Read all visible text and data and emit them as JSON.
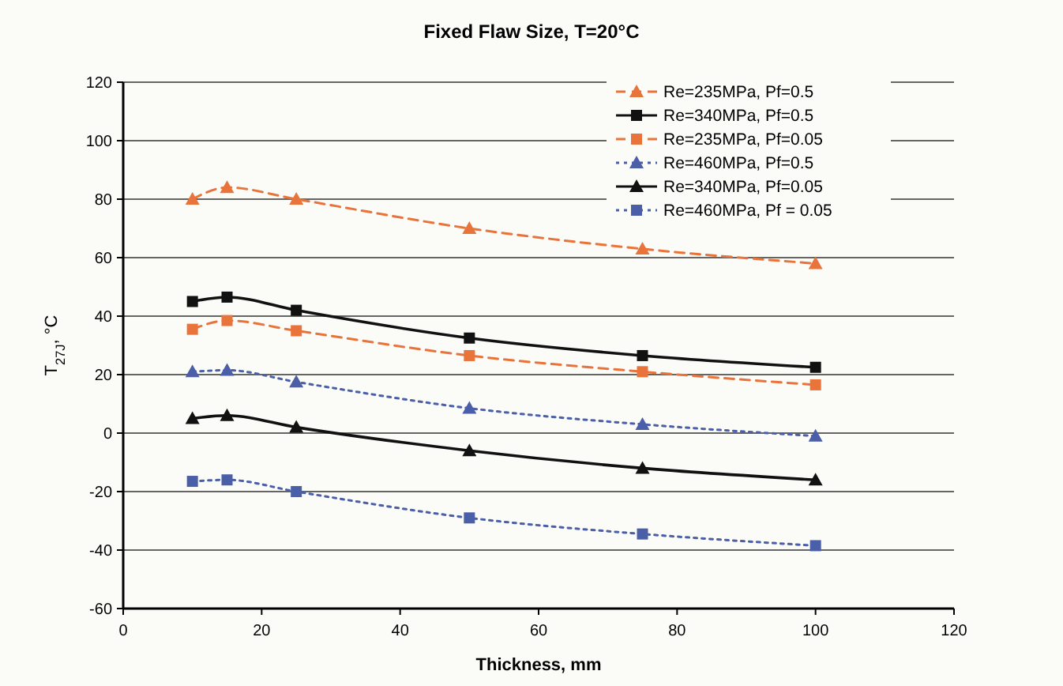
{
  "chart_data": {
    "type": "line",
    "title": "Fixed Flaw Size, T=20°C",
    "xlabel": "Thickness, mm",
    "ylabel": "T$_{27J}$, °C",
    "x": [
      10,
      15,
      25,
      50,
      75,
      100
    ],
    "xlim": [
      0,
      120
    ],
    "xticks": [
      0,
      20,
      40,
      60,
      80,
      100,
      120
    ],
    "ylim": [
      -60,
      120
    ],
    "yticks": [
      -60,
      -40,
      -20,
      0,
      20,
      40,
      60,
      80,
      100,
      120
    ],
    "grid": "y",
    "legend": "top right",
    "series": [
      {
        "name": "Re=235MPa, Pf=0.5",
        "color": "#e8743b",
        "marker": "triangle",
        "line_style": "dashed",
        "values": [
          80,
          84,
          80,
          70,
          63,
          58
        ]
      },
      {
        "name": "Re=340MPa, Pf=0.5",
        "color": "#111111",
        "marker": "square",
        "line_style": "solid",
        "values": [
          45,
          46.5,
          42,
          32.5,
          26.5,
          22.5
        ]
      },
      {
        "name": "Re=235MPa, Pf=0.05",
        "color": "#e8743b",
        "marker": "square",
        "line_style": "dashed",
        "values": [
          35.5,
          38.5,
          35,
          26.5,
          21,
          16.5
        ]
      },
      {
        "name": "Re=460MPa, Pf=0.5",
        "color": "#4a5fa8",
        "marker": "triangle",
        "line_style": "dotted",
        "values": [
          21,
          21.5,
          17.5,
          8.5,
          3,
          -1
        ]
      },
      {
        "name": "Re=340MPa, Pf=0.05",
        "color": "#111111",
        "marker": "triangle",
        "line_style": "solid",
        "values": [
          5,
          6,
          2,
          -6,
          -12,
          -16
        ]
      },
      {
        "name": "Re=460MPa, Pf = 0.05",
        "color": "#4a5fa8",
        "marker": "square",
        "line_style": "dotted",
        "values": [
          -16.5,
          -16,
          -20,
          -29,
          -34.5,
          -38.5
        ]
      }
    ]
  }
}
